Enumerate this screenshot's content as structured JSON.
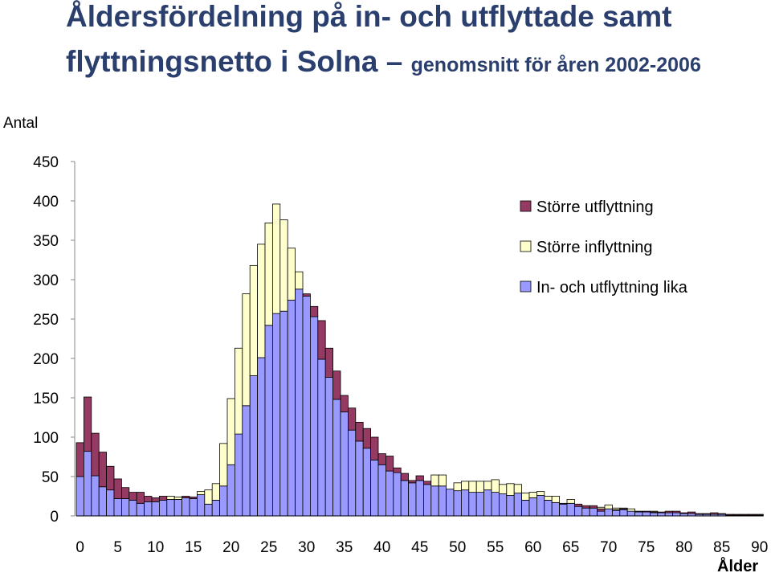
{
  "chart_data": {
    "type": "bar",
    "stacked": true,
    "title_line1": "Åldersfördelning på in- och utflyttade samt",
    "title_line2_main": "flyttningsnetto i Solna",
    "title_dash": "–",
    "title_line2_sub": "genomsnitt för åren 2002-2006",
    "ylabel": "Antal",
    "xlabel": "Ålder",
    "ylim": [
      0,
      450
    ],
    "yticks": [
      0,
      50,
      100,
      150,
      200,
      250,
      300,
      350,
      400,
      450
    ],
    "xticks": [
      0,
      5,
      10,
      15,
      20,
      25,
      30,
      35,
      40,
      45,
      50,
      55,
      60,
      65,
      70,
      75,
      80,
      85,
      90
    ],
    "legend_position": "top-right",
    "legend": [
      {
        "name": "Större utflyttning",
        "color": "#953a62"
      },
      {
        "name": "Större inflyttning",
        "color": "#ffffcc"
      },
      {
        "name": "In- och utflyttning lika",
        "color": "#9999ff"
      }
    ],
    "ages": [
      0,
      1,
      2,
      3,
      4,
      5,
      6,
      7,
      8,
      9,
      10,
      11,
      12,
      13,
      14,
      15,
      16,
      17,
      18,
      19,
      20,
      21,
      22,
      23,
      24,
      25,
      26,
      27,
      28,
      29,
      30,
      31,
      32,
      33,
      34,
      35,
      36,
      37,
      38,
      39,
      40,
      41,
      42,
      43,
      44,
      45,
      46,
      47,
      48,
      49,
      50,
      51,
      52,
      53,
      54,
      55,
      56,
      57,
      58,
      59,
      60,
      61,
      62,
      63,
      64,
      65,
      66,
      67,
      68,
      69,
      70,
      71,
      72,
      73,
      74,
      75,
      76,
      77,
      78,
      79,
      80,
      81,
      82,
      83,
      84,
      85,
      86,
      87,
      88,
      89,
      90
    ],
    "series": [
      {
        "name": "In- och utflyttning lika",
        "values": [
          50,
          82,
          51,
          37,
          33,
          22,
          22,
          20,
          16,
          18,
          18,
          20,
          21,
          21,
          23,
          22,
          27,
          15,
          20,
          38,
          65,
          104,
          140,
          178,
          201,
          242,
          257,
          260,
          274,
          288,
          279,
          253,
          199,
          176,
          148,
          132,
          109,
          95,
          86,
          71,
          65,
          57,
          55,
          45,
          42,
          45,
          40,
          38,
          38,
          34,
          32,
          33,
          30,
          30,
          33,
          30,
          28,
          26,
          29,
          20,
          23,
          26,
          20,
          17,
          15,
          16,
          12,
          10,
          10,
          6,
          9,
          7,
          8,
          6,
          5,
          5,
          4,
          4,
          4,
          4,
          3,
          3,
          2,
          2,
          2,
          2,
          1,
          1,
          1,
          1,
          1
        ]
      },
      {
        "name": "Större utflyttning",
        "values": [
          43,
          69,
          54,
          44,
          30,
          25,
          14,
          10,
          14,
          7,
          5,
          5,
          0,
          0,
          2,
          2,
          0,
          0,
          0,
          0,
          0,
          0,
          0,
          0,
          0,
          0,
          0,
          0,
          0,
          0,
          3,
          13,
          49,
          37,
          36,
          21,
          28,
          24,
          25,
          29,
          14,
          19,
          6,
          9,
          3,
          6,
          4,
          0,
          0,
          0,
          0,
          0,
          0,
          0,
          0,
          0,
          0,
          0,
          0,
          0,
          0,
          0,
          0,
          0,
          1,
          0,
          3,
          3,
          3,
          3,
          0,
          1,
          1,
          0,
          1,
          1,
          1,
          1,
          2,
          2,
          1,
          2,
          1,
          1,
          2,
          1,
          1,
          1,
          1,
          1,
          1
        ]
      },
      {
        "name": "Större inflyttning",
        "values": [
          0,
          0,
          0,
          0,
          0,
          0,
          0,
          0,
          0,
          0,
          0,
          0,
          4,
          3,
          0,
          0,
          4,
          18,
          21,
          54,
          84,
          109,
          142,
          140,
          144,
          130,
          139,
          116,
          66,
          22,
          0,
          0,
          0,
          0,
          0,
          0,
          0,
          0,
          0,
          0,
          0,
          0,
          0,
          0,
          0,
          0,
          0,
          14,
          14,
          0,
          10,
          11,
          14,
          14,
          11,
          16,
          12,
          15,
          11,
          9,
          7,
          5,
          5,
          8,
          0,
          5,
          0,
          0,
          0,
          2,
          5,
          2,
          1,
          3,
          0,
          0,
          1,
          0,
          0,
          0,
          0,
          0,
          0,
          0,
          0,
          0,
          0,
          0,
          0,
          0,
          0
        ]
      }
    ]
  }
}
